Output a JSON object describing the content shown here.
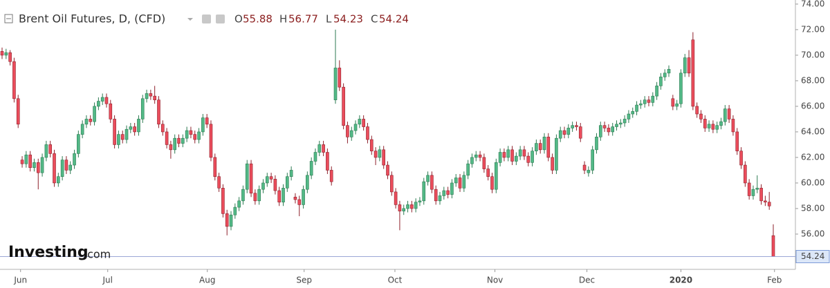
{
  "chart_data": {
    "type": "candlestick",
    "title": "Brent Oil Futures, D, (CFD)",
    "ohlc_labels": [
      "O",
      "H",
      "L",
      "C"
    ],
    "watermark": [
      "Investing",
      ".com"
    ],
    "up_color": "#53b987",
    "down_color": "#eb4d5c",
    "ylim": [
      53.24,
      74.32
    ],
    "yticks": [
      {
        "value": 56,
        "label": "56.00"
      },
      {
        "value": 58,
        "label": "58.00"
      },
      {
        "value": 60,
        "label": "60.00"
      },
      {
        "value": 62,
        "label": "62.00"
      },
      {
        "value": 64,
        "label": "64.00"
      },
      {
        "value": 66,
        "label": "66.00"
      },
      {
        "value": 68,
        "label": "68.00"
      },
      {
        "value": 70,
        "label": "70.00"
      },
      {
        "value": 72,
        "label": "72.00"
      },
      {
        "value": 74,
        "label": "74.00"
      }
    ],
    "xticks": [
      {
        "value": 4.6,
        "label": "Jun"
      },
      {
        "value": 26.3,
        "label": "Jul"
      },
      {
        "value": 51.1,
        "label": "Aug"
      },
      {
        "value": 75.2,
        "label": "Sep"
      },
      {
        "value": 97.8,
        "label": "Oct"
      },
      {
        "value": 122.7,
        "label": "Nov"
      },
      {
        "value": 145.6,
        "label": "Dec"
      },
      {
        "value": 169,
        "label": "2020"
      },
      {
        "value": 192.3,
        "label": "Feb"
      }
    ],
    "ohlc": [
      [
        70.3,
        70.6,
        69.7,
        70.0
      ],
      [
        70.0,
        70.5,
        69.7,
        70.2
      ],
      [
        70.2,
        70.4,
        69.2,
        69.5
      ],
      [
        69.5,
        69.8,
        66.3,
        66.6
      ],
      [
        66.6,
        66.9,
        64.3,
        64.6
      ],
      [
        61.8,
        62.1,
        61.2,
        61.5
      ],
      [
        61.5,
        62.5,
        61.2,
        62.2
      ],
      [
        62.2,
        62.5,
        60.9,
        61.2
      ],
      [
        61.2,
        61.9,
        60.9,
        61.6
      ],
      [
        61.6,
        61.9,
        59.5,
        60.8
      ],
      [
        60.8,
        62.3,
        60.5,
        62.0
      ],
      [
        62.0,
        63.3,
        61.7,
        63.0
      ],
      [
        63.0,
        63.3,
        62.0,
        62.3
      ],
      [
        62.3,
        62.6,
        59.7,
        60.0
      ],
      [
        60.0,
        60.8,
        59.7,
        60.5
      ],
      [
        60.5,
        62.1,
        60.2,
        61.8
      ],
      [
        61.8,
        62.1,
        60.7,
        61.0
      ],
      [
        61.0,
        61.7,
        60.7,
        61.4
      ],
      [
        61.4,
        62.6,
        61.1,
        62.3
      ],
      [
        62.3,
        64.1,
        62.0,
        63.8
      ],
      [
        63.8,
        64.9,
        63.5,
        64.6
      ],
      [
        64.6,
        65.3,
        64.3,
        65.0
      ],
      [
        65.0,
        65.3,
        64.5,
        64.8
      ],
      [
        64.8,
        66.3,
        64.5,
        66.0
      ],
      [
        66.0,
        66.7,
        65.7,
        66.4
      ],
      [
        66.4,
        67.0,
        66.1,
        66.7
      ],
      [
        66.7,
        67.0,
        65.9,
        66.2
      ],
      [
        66.2,
        66.5,
        64.7,
        65.0
      ],
      [
        65.0,
        65.3,
        62.7,
        63.0
      ],
      [
        63.0,
        64.1,
        62.7,
        63.8
      ],
      [
        63.8,
        64.1,
        63.1,
        63.4
      ],
      [
        63.4,
        64.5,
        63.1,
        64.2
      ],
      [
        64.2,
        64.7,
        63.9,
        64.4
      ],
      [
        64.4,
        64.7,
        63.7,
        64.0
      ],
      [
        64.0,
        65.3,
        63.7,
        65.0
      ],
      [
        65.0,
        66.9,
        64.7,
        66.6
      ],
      [
        66.6,
        67.3,
        66.3,
        67.0
      ],
      [
        67.0,
        67.3,
        66.5,
        66.8
      ],
      [
        66.8,
        67.6,
        66.2,
        66.5
      ],
      [
        66.5,
        66.8,
        64.3,
        64.6
      ],
      [
        64.6,
        64.9,
        63.7,
        64.0
      ],
      [
        64.0,
        64.3,
        62.7,
        63.0
      ],
      [
        63.0,
        63.3,
        61.9,
        62.6
      ],
      [
        62.6,
        63.8,
        62.3,
        63.5
      ],
      [
        63.5,
        63.8,
        62.8,
        63.1
      ],
      [
        63.1,
        63.8,
        62.8,
        63.5
      ],
      [
        63.5,
        64.4,
        63.2,
        64.1
      ],
      [
        64.1,
        64.4,
        63.5,
        63.8
      ],
      [
        63.8,
        64.1,
        63.1,
        63.4
      ],
      [
        63.4,
        64.3,
        63.1,
        64.0
      ],
      [
        64.0,
        65.4,
        63.7,
        65.1
      ],
      [
        65.1,
        65.4,
        64.3,
        64.6
      ],
      [
        64.6,
        64.9,
        61.7,
        62.0
      ],
      [
        62.0,
        62.3,
        60.2,
        60.5
      ],
      [
        60.5,
        60.8,
        59.3,
        59.6
      ],
      [
        59.6,
        59.9,
        57.3,
        57.6
      ],
      [
        57.6,
        57.9,
        55.9,
        56.6
      ],
      [
        56.6,
        57.8,
        56.3,
        57.5
      ],
      [
        57.5,
        58.4,
        57.2,
        58.1
      ],
      [
        58.1,
        58.9,
        57.8,
        58.6
      ],
      [
        58.6,
        59.8,
        58.3,
        59.5
      ],
      [
        59.5,
        61.8,
        59.2,
        61.5
      ],
      [
        61.5,
        61.8,
        58.9,
        59.2
      ],
      [
        59.2,
        59.5,
        58.3,
        58.6
      ],
      [
        58.6,
        59.8,
        58.3,
        59.5
      ],
      [
        59.5,
        60.3,
        59.2,
        60.0
      ],
      [
        60.0,
        60.8,
        59.7,
        60.5
      ],
      [
        60.5,
        60.8,
        60.0,
        60.3
      ],
      [
        60.3,
        60.6,
        59.1,
        59.4
      ],
      [
        59.4,
        59.7,
        58.2,
        58.5
      ],
      [
        58.5,
        59.9,
        58.2,
        59.6
      ],
      [
        59.6,
        60.8,
        59.3,
        60.5
      ],
      [
        60.5,
        61.3,
        60.2,
        61.0
      ],
      [
        58.9,
        59.2,
        58.4,
        58.7
      ],
      [
        58.7,
        59.0,
        57.4,
        58.3
      ],
      [
        58.3,
        59.8,
        58.0,
        59.5
      ],
      [
        59.5,
        60.9,
        59.2,
        60.6
      ],
      [
        60.6,
        62.0,
        60.3,
        61.7
      ],
      [
        61.7,
        62.7,
        61.4,
        62.4
      ],
      [
        62.4,
        63.3,
        62.1,
        63.0
      ],
      [
        63.0,
        63.3,
        62.1,
        62.4
      ],
      [
        62.4,
        62.7,
        60.7,
        61.0
      ],
      [
        61.0,
        61.3,
        59.8,
        60.1
      ],
      [
        66.5,
        72.0,
        66.2,
        69.0
      ],
      [
        69.0,
        69.6,
        67.2,
        67.5
      ],
      [
        67.5,
        67.8,
        64.2,
        64.5
      ],
      [
        64.5,
        64.8,
        63.1,
        63.6
      ],
      [
        63.6,
        64.4,
        63.3,
        64.1
      ],
      [
        64.1,
        64.9,
        63.8,
        64.6
      ],
      [
        64.6,
        65.3,
        64.3,
        65.0
      ],
      [
        65.0,
        65.3,
        64.1,
        64.4
      ],
      [
        64.4,
        64.7,
        63.1,
        63.4
      ],
      [
        63.4,
        63.7,
        62.2,
        62.5
      ],
      [
        62.5,
        62.8,
        61.4,
        62.0
      ],
      [
        62.0,
        62.9,
        61.7,
        62.6
      ],
      [
        62.6,
        62.9,
        61.1,
        61.4
      ],
      [
        61.4,
        61.7,
        60.3,
        60.6
      ],
      [
        60.6,
        60.9,
        59.0,
        59.3
      ],
      [
        59.3,
        59.6,
        58.0,
        58.3
      ],
      [
        58.3,
        58.6,
        56.3,
        57.8
      ],
      [
        57.8,
        58.3,
        57.5,
        58.0
      ],
      [
        58.0,
        58.6,
        57.7,
        58.3
      ],
      [
        58.3,
        58.6,
        57.7,
        58.0
      ],
      [
        58.0,
        58.8,
        57.7,
        58.5
      ],
      [
        58.5,
        58.9,
        58.2,
        58.6
      ],
      [
        58.6,
        60.4,
        58.3,
        60.1
      ],
      [
        60.1,
        60.9,
        59.8,
        60.6
      ],
      [
        60.6,
        60.9,
        59.2,
        59.5
      ],
      [
        59.5,
        59.8,
        58.3,
        58.6
      ],
      [
        58.6,
        59.3,
        58.3,
        59.0
      ],
      [
        59.0,
        59.7,
        58.7,
        59.4
      ],
      [
        59.4,
        59.7,
        58.8,
        59.1
      ],
      [
        59.1,
        60.3,
        58.8,
        60.0
      ],
      [
        60.0,
        60.7,
        59.7,
        60.4
      ],
      [
        60.4,
        60.7,
        59.3,
        59.6
      ],
      [
        59.6,
        60.9,
        59.3,
        60.6
      ],
      [
        60.6,
        61.8,
        60.3,
        61.5
      ],
      [
        61.5,
        62.3,
        61.2,
        62.0
      ],
      [
        62.0,
        62.5,
        61.7,
        62.2
      ],
      [
        62.2,
        62.5,
        61.7,
        62.0
      ],
      [
        62.0,
        62.3,
        60.8,
        61.1
      ],
      [
        61.1,
        61.4,
        60.2,
        60.5
      ],
      [
        60.5,
        60.8,
        59.2,
        59.5
      ],
      [
        59.5,
        61.9,
        59.2,
        61.6
      ],
      [
        61.6,
        62.7,
        61.3,
        62.4
      ],
      [
        62.4,
        62.7,
        61.7,
        62.0
      ],
      [
        62.0,
        62.9,
        61.7,
        62.6
      ],
      [
        62.6,
        62.9,
        61.4,
        61.7
      ],
      [
        61.7,
        62.4,
        61.4,
        62.1
      ],
      [
        62.1,
        62.9,
        61.8,
        62.6
      ],
      [
        62.6,
        62.9,
        61.8,
        62.1
      ],
      [
        62.1,
        62.4,
        61.3,
        61.6
      ],
      [
        61.6,
        62.8,
        61.3,
        62.5
      ],
      [
        62.5,
        63.4,
        62.2,
        63.1
      ],
      [
        63.1,
        63.4,
        62.3,
        62.6
      ],
      [
        62.6,
        63.9,
        62.3,
        63.6
      ],
      [
        63.6,
        63.9,
        61.7,
        62.0
      ],
      [
        62.0,
        62.3,
        60.7,
        61.0
      ],
      [
        61.0,
        63.8,
        60.7,
        63.5
      ],
      [
        63.5,
        64.4,
        63.2,
        64.1
      ],
      [
        64.1,
        64.4,
        63.5,
        63.8
      ],
      [
        63.8,
        64.6,
        63.5,
        64.3
      ],
      [
        64.3,
        64.8,
        64.0,
        64.5
      ],
      [
        64.5,
        64.8,
        64.1,
        64.4
      ],
      [
        64.4,
        64.7,
        63.2,
        63.5
      ],
      [
        61.4,
        61.7,
        60.7,
        61.0
      ],
      [
        60.8,
        61.3,
        60.5,
        61.0
      ],
      [
        61.0,
        62.9,
        60.7,
        62.6
      ],
      [
        62.6,
        63.9,
        62.3,
        63.6
      ],
      [
        63.6,
        64.8,
        63.3,
        64.5
      ],
      [
        64.5,
        64.8,
        64.0,
        64.3
      ],
      [
        64.3,
        64.6,
        63.7,
        64.0
      ],
      [
        64.0,
        64.7,
        63.7,
        64.4
      ],
      [
        64.4,
        64.9,
        64.1,
        64.6
      ],
      [
        64.6,
        65.0,
        64.3,
        64.7
      ],
      [
        64.7,
        65.3,
        64.4,
        65.0
      ],
      [
        65.0,
        65.7,
        64.7,
        65.4
      ],
      [
        65.4,
        65.9,
        65.1,
        65.6
      ],
      [
        65.6,
        66.4,
        65.3,
        66.1
      ],
      [
        66.1,
        66.5,
        65.8,
        66.2
      ],
      [
        66.2,
        66.8,
        65.9,
        66.5
      ],
      [
        66.5,
        66.8,
        66.0,
        66.3
      ],
      [
        66.3,
        67.1,
        66.0,
        66.8
      ],
      [
        66.8,
        67.9,
        66.5,
        67.6
      ],
      [
        67.6,
        68.6,
        67.3,
        68.3
      ],
      [
        68.3,
        68.9,
        68.0,
        68.6
      ],
      [
        68.6,
        69.2,
        68.3,
        68.9
      ],
      [
        66.6,
        66.9,
        65.7,
        66.0
      ],
      [
        66.0,
        66.5,
        65.7,
        66.2
      ],
      [
        66.2,
        68.9,
        65.9,
        68.6
      ],
      [
        68.6,
        70.1,
        68.3,
        69.8
      ],
      [
        69.8,
        70.4,
        68.3,
        68.6
      ],
      [
        71.2,
        71.8,
        65.7,
        66.0
      ],
      [
        66.0,
        66.3,
        65.1,
        65.4
      ],
      [
        65.4,
        65.7,
        64.7,
        65.0
      ],
      [
        65.0,
        65.3,
        64.0,
        64.3
      ],
      [
        64.3,
        64.9,
        64.0,
        64.6
      ],
      [
        64.6,
        64.9,
        63.9,
        64.2
      ],
      [
        64.2,
        64.8,
        63.9,
        64.5
      ],
      [
        64.5,
        65.1,
        64.2,
        64.8
      ],
      [
        64.8,
        66.1,
        64.5,
        65.8
      ],
      [
        65.8,
        66.1,
        64.7,
        65.0
      ],
      [
        65.0,
        65.3,
        63.7,
        64.0
      ],
      [
        64.0,
        64.3,
        62.2,
        62.5
      ],
      [
        62.5,
        62.8,
        61.1,
        61.4
      ],
      [
        61.4,
        61.7,
        59.7,
        60.0
      ],
      [
        60.0,
        60.3,
        58.7,
        59.0
      ],
      [
        59.0,
        59.8,
        58.7,
        59.5
      ],
      [
        59.5,
        60.6,
        59.2,
        59.6
      ],
      [
        59.6,
        59.9,
        58.3,
        58.6
      ],
      [
        58.6,
        59.0,
        58.2,
        58.5
      ],
      [
        58.5,
        59.3,
        57.9,
        58.2
      ],
      [
        55.88,
        56.77,
        54.23,
        54.24
      ]
    ]
  }
}
